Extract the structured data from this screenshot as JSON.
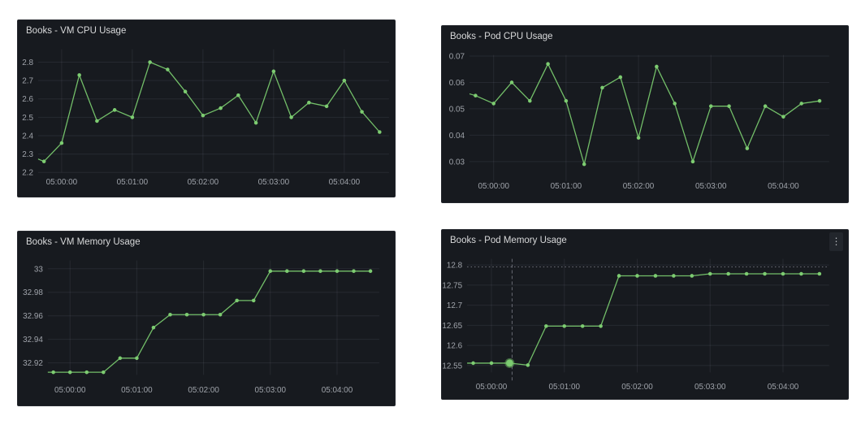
{
  "ui": {
    "page_background": "#ffffff",
    "time_tick_labels": [
      "05:00:00",
      "05:01:00",
      "05:02:00",
      "05:03:00",
      "05:04:00"
    ]
  },
  "colors": {
    "panel_background": "#171a1f",
    "panel_border": "#23262c",
    "series_green": "#73bf69",
    "point_green": "#7dcc71",
    "grid": "rgba(204,204,220,0.09)",
    "tick_text": "#9fa3aa",
    "title_text": "#d8d9da",
    "threshold_line": "rgba(204,204,220,0.55)",
    "crosshair_line": "rgba(204,204,220,0.45)"
  },
  "panels": [
    {
      "title": "Books - VM CPU Usage",
      "has_menu": false
    },
    {
      "title": "Books - Pod CPU Usage",
      "has_menu": false
    },
    {
      "title": "Books - VM Memory Usage",
      "has_menu": false
    },
    {
      "title": "Books - Pod Memory Usage",
      "has_menu": true,
      "menu_icon": "kebab-vertical-icon",
      "menu_glyph": "⋮"
    }
  ],
  "chart_data": [
    {
      "type": "line",
      "title": "Books - VM CPU Usage",
      "series_color": "#73bf69",
      "x_times": [
        "04:59:30",
        "04:59:45",
        "05:00:00",
        "05:00:15",
        "05:00:30",
        "05:00:45",
        "05:01:00",
        "05:01:15",
        "05:01:30",
        "05:01:45",
        "05:02:00",
        "05:02:15",
        "05:02:30",
        "05:02:45",
        "05:03:00",
        "05:03:15",
        "05:03:30",
        "05:03:45",
        "05:04:00",
        "05:04:15",
        "05:04:30"
      ],
      "x_seconds": [
        -30,
        -15,
        0,
        15,
        30,
        45,
        60,
        75,
        90,
        105,
        120,
        135,
        150,
        165,
        180,
        195,
        210,
        225,
        240,
        255,
        270
      ],
      "values": [
        2.3,
        2.26,
        2.36,
        2.73,
        2.48,
        2.54,
        2.5,
        2.8,
        2.76,
        2.64,
        2.51,
        2.55,
        2.62,
        2.47,
        2.75,
        2.5,
        2.58,
        2.56,
        2.7,
        2.53,
        2.42
      ],
      "x_tick_seconds": [
        0,
        60,
        120,
        180,
        240
      ],
      "x_tick_labels": [
        "05:00:00",
        "05:01:00",
        "05:02:00",
        "05:03:00",
        "05:04:00"
      ],
      "y_ticks": [
        2.2,
        2.3,
        2.4,
        2.5,
        2.6,
        2.7,
        2.8
      ],
      "y_tick_labels": [
        "2.2",
        "2.3",
        "2.4",
        "2.5",
        "2.6",
        "2.7",
        "2.8"
      ],
      "ylim": [
        2.2,
        2.87
      ],
      "xlim_seconds": [
        -20,
        278
      ],
      "grid": true,
      "legend": "none",
      "first_point_has_dot": false
    },
    {
      "type": "line",
      "title": "Books - Pod CPU Usage",
      "series_color": "#73bf69",
      "x_times": [
        "04:59:30",
        "04:59:45",
        "05:00:00",
        "05:00:15",
        "05:00:30",
        "05:00:45",
        "05:01:00",
        "05:01:15",
        "05:01:30",
        "05:01:45",
        "05:02:00",
        "05:02:15",
        "05:02:30",
        "05:02:45",
        "05:03:00",
        "05:03:15",
        "05:03:30",
        "05:03:45",
        "05:04:00",
        "05:04:15",
        "05:04:30"
      ],
      "x_seconds": [
        -30,
        -15,
        0,
        15,
        30,
        45,
        60,
        75,
        90,
        105,
        120,
        135,
        150,
        165,
        180,
        195,
        210,
        225,
        240,
        255,
        270
      ],
      "values": [
        0.057,
        0.055,
        0.052,
        0.06,
        0.053,
        0.067,
        0.053,
        0.029,
        0.058,
        0.062,
        0.039,
        0.066,
        0.052,
        0.03,
        0.051,
        0.051,
        0.035,
        0.051,
        0.047,
        0.052,
        0.053
      ],
      "x_tick_seconds": [
        0,
        60,
        120,
        180,
        240
      ],
      "x_tick_labels": [
        "05:00:00",
        "05:01:00",
        "05:02:00",
        "05:03:00",
        "05:04:00"
      ],
      "y_ticks": [
        0.03,
        0.04,
        0.05,
        0.06,
        0.07
      ],
      "y_tick_labels": [
        "0.03",
        "0.04",
        "0.05",
        "0.06",
        "0.07"
      ],
      "ylim": [
        0.0225,
        0.0704
      ],
      "xlim_seconds": [
        -20,
        278
      ],
      "grid": true,
      "legend": "none",
      "first_point_has_dot": false
    },
    {
      "type": "line",
      "title": "Books - VM Memory Usage",
      "series_color": "#73bf69",
      "x_times": [
        "04:59:30",
        "04:59:45",
        "05:00:00",
        "05:00:15",
        "05:00:30",
        "05:00:45",
        "05:01:00",
        "05:01:15",
        "05:01:30",
        "05:01:45",
        "05:02:00",
        "05:02:15",
        "05:02:30",
        "05:02:45",
        "05:03:00",
        "05:03:15",
        "05:03:30",
        "05:03:45",
        "05:04:00",
        "05:04:15",
        "05:04:30"
      ],
      "x_seconds": [
        -30,
        -15,
        0,
        15,
        30,
        45,
        60,
        75,
        90,
        105,
        120,
        135,
        150,
        165,
        180,
        195,
        210,
        225,
        240,
        255,
        270
      ],
      "values": [
        32.912,
        32.912,
        32.912,
        32.912,
        32.912,
        32.924,
        32.924,
        32.95,
        32.961,
        32.961,
        32.961,
        32.961,
        32.973,
        32.973,
        32.998,
        32.998,
        32.998,
        32.998,
        32.998,
        32.998,
        32.998
      ],
      "x_tick_seconds": [
        0,
        60,
        120,
        180,
        240
      ],
      "x_tick_labels": [
        "05:00:00",
        "05:01:00",
        "05:02:00",
        "05:03:00",
        "05:04:00"
      ],
      "y_ticks": [
        32.92,
        32.94,
        32.96,
        32.98,
        33.0
      ],
      "y_tick_labels": [
        "32.92",
        "32.94",
        "32.96",
        "32.98",
        "33"
      ],
      "ylim": [
        32.9098,
        33.007
      ],
      "xlim_seconds": [
        -20,
        278
      ],
      "grid": true,
      "legend": "none",
      "first_point_has_dot": false
    },
    {
      "type": "line",
      "title": "Books - Pod Memory Usage",
      "series_color": "#73bf69",
      "x_times": [
        "04:59:30",
        "04:59:45",
        "05:00:00",
        "05:00:15",
        "05:00:30",
        "05:00:45",
        "05:01:00",
        "05:01:15",
        "05:01:30",
        "05:01:45",
        "05:02:00",
        "05:02:15",
        "05:02:30",
        "05:02:45",
        "05:03:00",
        "05:03:15",
        "05:03:30",
        "05:03:45",
        "05:04:00",
        "05:04:15",
        "05:04:30"
      ],
      "x_seconds": [
        -30,
        -15,
        0,
        15,
        30,
        45,
        60,
        75,
        90,
        105,
        120,
        135,
        150,
        165,
        180,
        195,
        210,
        225,
        240,
        255,
        270
      ],
      "values": [
        12.556,
        12.556,
        12.556,
        12.556,
        12.551,
        12.648,
        12.648,
        12.648,
        12.648,
        12.773,
        12.773,
        12.773,
        12.773,
        12.773,
        12.778,
        12.778,
        12.778,
        12.778,
        12.778,
        12.778,
        12.778
      ],
      "x_tick_seconds": [
        0,
        60,
        120,
        180,
        240
      ],
      "x_tick_labels": [
        "05:00:00",
        "05:01:00",
        "05:02:00",
        "05:03:00",
        "05:04:00"
      ],
      "y_ticks": [
        12.55,
        12.6,
        12.65,
        12.7,
        12.75,
        12.8
      ],
      "y_tick_labels": [
        "12.55",
        "12.6",
        "12.65",
        "12.7",
        "12.75",
        "12.8"
      ],
      "ylim": [
        12.533,
        12.815
      ],
      "xlim_seconds": [
        -20,
        278
      ],
      "grid": true,
      "legend": "none",
      "first_point_has_dot": false,
      "annotations": {
        "threshold_value": 12.795,
        "crosshair_seconds": 17,
        "highlight_point_index": 3
      }
    }
  ]
}
